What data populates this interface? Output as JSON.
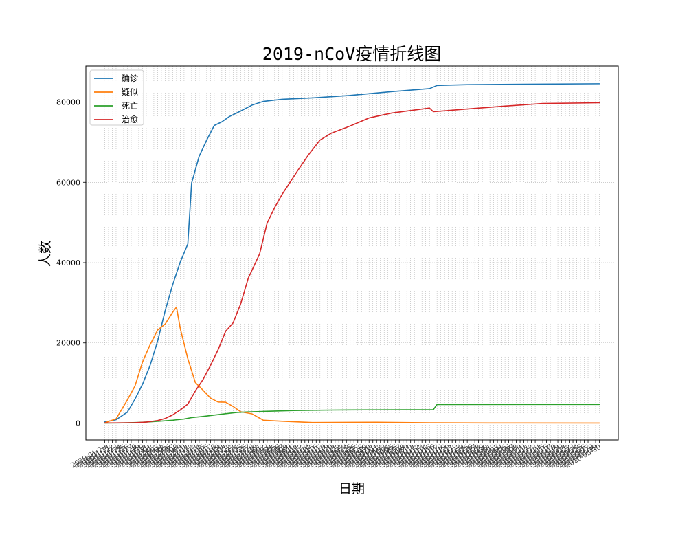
{
  "chart_data": {
    "type": "line",
    "title": "2019-nCoV疫情折线图",
    "xlabel": "日期",
    "ylabel": "人数",
    "x_axis": "date",
    "x_start": "2020-01-20",
    "x_end": "2020-05-30",
    "ylim": [
      -4200,
      89000
    ],
    "yticks": [
      0,
      20000,
      40000,
      60000,
      80000
    ],
    "grid": true,
    "grid_style": "dotted",
    "legend_position": "top-left",
    "series": [
      {
        "name": "确诊",
        "color": "#1f77b4",
        "points": [
          [
            "2020-01-20",
            291
          ],
          [
            "2020-01-23",
            830
          ],
          [
            "2020-01-26",
            2744
          ],
          [
            "2020-01-28",
            5974
          ],
          [
            "2020-01-30",
            9692
          ],
          [
            "2020-02-01",
            14380
          ],
          [
            "2020-02-03",
            20438
          ],
          [
            "2020-02-05",
            28018
          ],
          [
            "2020-02-07",
            34546
          ],
          [
            "2020-02-09",
            40171
          ],
          [
            "2020-02-11",
            44653
          ],
          [
            "2020-02-12",
            59804
          ],
          [
            "2020-02-14",
            66492
          ],
          [
            "2020-02-16",
            70548
          ],
          [
            "2020-02-18",
            74185
          ],
          [
            "2020-02-20",
            75077
          ],
          [
            "2020-02-22",
            76392
          ],
          [
            "2020-02-25",
            77779
          ],
          [
            "2020-02-28",
            79251
          ],
          [
            "2020-03-02",
            80174
          ],
          [
            "2020-03-07",
            80695
          ],
          [
            "2020-03-15",
            81048
          ],
          [
            "2020-03-25",
            81661
          ],
          [
            "2020-04-05",
            82602
          ],
          [
            "2020-04-15",
            83356
          ],
          [
            "2020-04-17",
            84152
          ],
          [
            "2020-04-25",
            84341
          ],
          [
            "2020-05-10",
            84450
          ],
          [
            "2020-05-30",
            84568
          ]
        ]
      },
      {
        "name": "疑似",
        "color": "#ff7f0e",
        "points": [
          [
            "2020-01-20",
            54
          ],
          [
            "2020-01-23",
            1072
          ],
          [
            "2020-01-26",
            5794
          ],
          [
            "2020-01-28",
            9239
          ],
          [
            "2020-01-30",
            15238
          ],
          [
            "2020-02-01",
            19544
          ],
          [
            "2020-02-03",
            23214
          ],
          [
            "2020-02-05",
            24702
          ],
          [
            "2020-02-07",
            27657
          ],
          [
            "2020-02-08",
            28942
          ],
          [
            "2020-02-09",
            23589
          ],
          [
            "2020-02-11",
            16067
          ],
          [
            "2020-02-13",
            10109
          ],
          [
            "2020-02-15",
            8228
          ],
          [
            "2020-02-17",
            6242
          ],
          [
            "2020-02-19",
            5248
          ],
          [
            "2020-02-21",
            5206
          ],
          [
            "2020-02-23",
            4148
          ],
          [
            "2020-02-25",
            2824
          ],
          [
            "2020-02-28",
            2308
          ],
          [
            "2020-03-02",
            715
          ],
          [
            "2020-03-07",
            458
          ],
          [
            "2020-03-15",
            134
          ],
          [
            "2020-04-01",
            200
          ],
          [
            "2020-04-15",
            72
          ],
          [
            "2020-05-01",
            30
          ],
          [
            "2020-05-30",
            4
          ]
        ]
      },
      {
        "name": "死亡",
        "color": "#2ca02c",
        "points": [
          [
            "2020-01-20",
            6
          ],
          [
            "2020-01-23",
            26
          ],
          [
            "2020-01-26",
            80
          ],
          [
            "2020-01-29",
            170
          ],
          [
            "2020-02-01",
            304
          ],
          [
            "2020-02-04",
            492
          ],
          [
            "2020-02-07",
            722
          ],
          [
            "2020-02-10",
            1016
          ],
          [
            "2020-02-12",
            1368
          ],
          [
            "2020-02-15",
            1665
          ],
          [
            "2020-02-18",
            2004
          ],
          [
            "2020-02-21",
            2345
          ],
          [
            "2020-02-24",
            2663
          ],
          [
            "2020-02-27",
            2788
          ],
          [
            "2020-03-02",
            2915
          ],
          [
            "2020-03-10",
            3136
          ],
          [
            "2020-03-20",
            3255
          ],
          [
            "2020-04-01",
            3316
          ],
          [
            "2020-04-16",
            3342
          ],
          [
            "2020-04-17",
            4642
          ],
          [
            "2020-05-30",
            4645
          ]
        ]
      },
      {
        "name": "治愈",
        "color": "#d62728",
        "points": [
          [
            "2020-01-20",
            25
          ],
          [
            "2020-01-25",
            49
          ],
          [
            "2020-01-28",
            103
          ],
          [
            "2020-01-31",
            243
          ],
          [
            "2020-02-03",
            632
          ],
          [
            "2020-02-05",
            1153
          ],
          [
            "2020-02-07",
            2050
          ],
          [
            "2020-02-09",
            3284
          ],
          [
            "2020-02-11",
            4740
          ],
          [
            "2020-02-13",
            8030
          ],
          [
            "2020-02-15",
            10844
          ],
          [
            "2020-02-17",
            14376
          ],
          [
            "2020-02-19",
            18264
          ],
          [
            "2020-02-21",
            22888
          ],
          [
            "2020-02-23",
            25015
          ],
          [
            "2020-02-25",
            29745
          ],
          [
            "2020-02-27",
            36117
          ],
          [
            "2020-03-01",
            42162
          ],
          [
            "2020-03-03",
            49856
          ],
          [
            "2020-03-05",
            53726
          ],
          [
            "2020-03-07",
            57065
          ],
          [
            "2020-03-09",
            59897
          ],
          [
            "2020-03-11",
            62793
          ],
          [
            "2020-03-14",
            66926
          ],
          [
            "2020-03-17",
            70535
          ],
          [
            "2020-03-20",
            72244
          ],
          [
            "2020-03-25",
            74051
          ],
          [
            "2020-03-30",
            76052
          ],
          [
            "2020-04-05",
            77279
          ],
          [
            "2020-04-15",
            78513
          ],
          [
            "2020-04-16",
            77610
          ],
          [
            "2020-04-25",
            78277
          ],
          [
            "2020-05-05",
            79002
          ],
          [
            "2020-05-15",
            79650
          ],
          [
            "2020-05-30",
            79832
          ]
        ]
      }
    ]
  }
}
